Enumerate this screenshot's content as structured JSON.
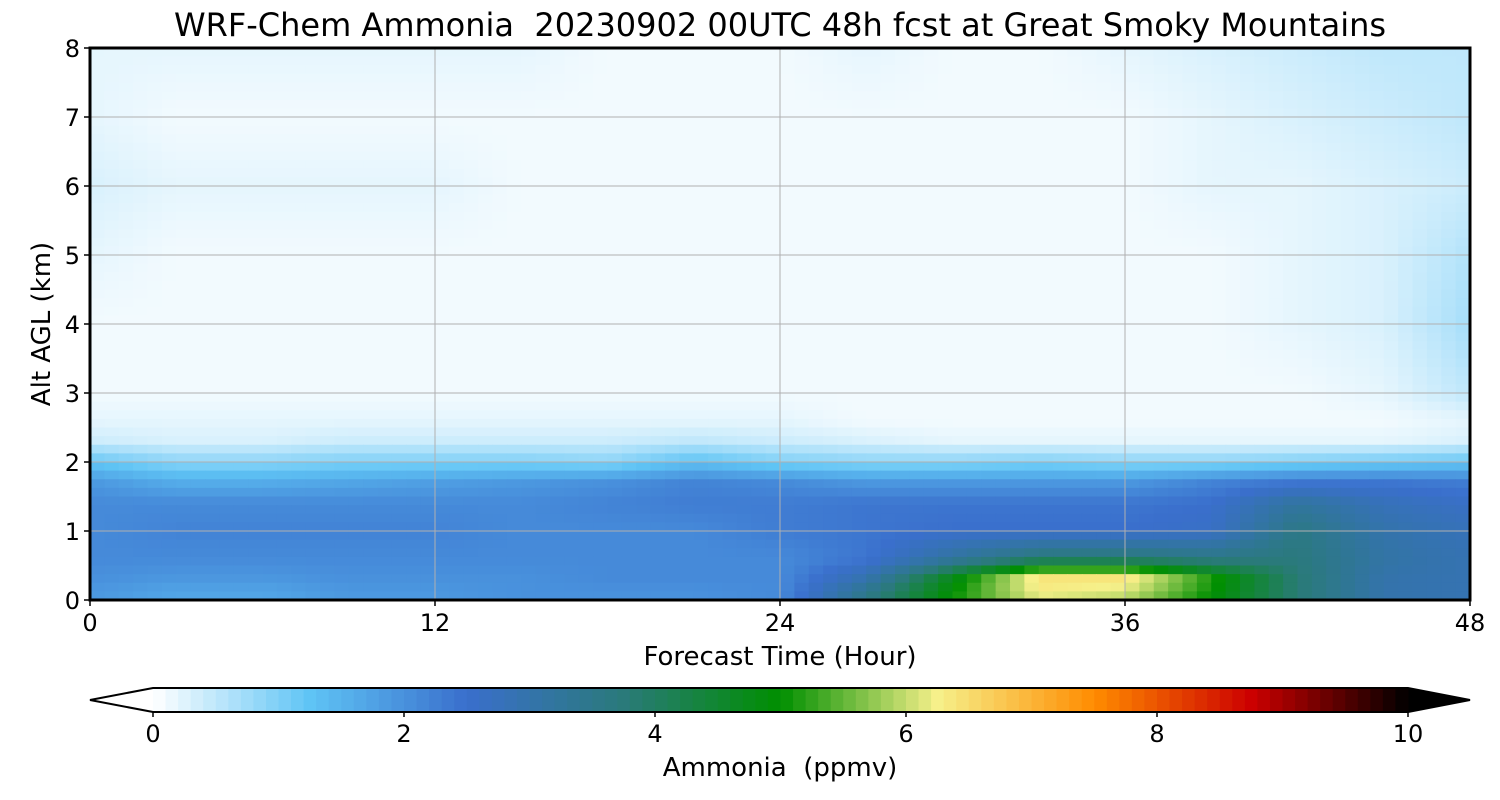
{
  "chart_data": {
    "type": "heatmap",
    "title": "WRF-Chem Ammonia  20230902 00UTC 48h fcst at Great Smoky Mountains",
    "xlabel": "Forecast Time (Hour)",
    "ylabel": "Alt AGL (km)",
    "xlim": [
      0,
      48
    ],
    "ylim": [
      0,
      8
    ],
    "x_ticks": [
      "0",
      "12",
      "24",
      "36",
      "48"
    ],
    "y_ticks": [
      "0",
      "1",
      "2",
      "3",
      "4",
      "5",
      "6",
      "7",
      "8"
    ],
    "grid": true,
    "colorbar": {
      "label": "Ammonia  (ppmv)",
      "range": [
        0,
        10
      ],
      "ticks": [
        "0",
        "2",
        "4",
        "6",
        "8",
        "10"
      ],
      "extend": "both",
      "colors": [
        "#ffffff",
        "#5fc4f5",
        "#3a6fcc",
        "#2a7a7a",
        "#008f00",
        "#f6f08a",
        "#ff8c00",
        "#cc0000",
        "#000000"
      ]
    },
    "x": [
      0,
      3,
      6,
      9,
      12,
      15,
      18,
      21,
      24,
      27,
      30,
      33,
      36,
      39,
      42,
      45,
      48
    ],
    "y": [
      0.1,
      0.3,
      0.6,
      1.0,
      1.4,
      1.7,
      2.0,
      2.3,
      2.6,
      3.0,
      4.0,
      5.0,
      6.0,
      7.0,
      8.0
    ],
    "values": [
      [
        1.9,
        1.7,
        1.7,
        1.9,
        1.9,
        2.0,
        2.0,
        2.0,
        2.1,
        3.5,
        5.0,
        6.2,
        6.0,
        5.0,
        3.8,
        3.0,
        2.9
      ],
      [
        2.0,
        1.9,
        1.9,
        2.0,
        2.0,
        2.0,
        2.1,
        2.1,
        2.1,
        3.0,
        4.8,
        6.5,
        6.5,
        5.2,
        3.8,
        3.0,
        2.9
      ],
      [
        2.1,
        2.1,
        2.1,
        2.1,
        2.1,
        2.1,
        2.1,
        2.1,
        2.1,
        2.4,
        3.2,
        3.8,
        3.8,
        3.6,
        3.7,
        3.1,
        2.9
      ],
      [
        2.1,
        2.2,
        2.2,
        2.2,
        2.2,
        2.1,
        2.1,
        2.1,
        2.3,
        2.4,
        2.5,
        2.5,
        2.5,
        2.6,
        3.6,
        3.0,
        2.8
      ],
      [
        2.1,
        2.1,
        2.1,
        2.1,
        2.1,
        2.1,
        2.2,
        2.3,
        2.3,
        2.4,
        2.4,
        2.4,
        2.4,
        2.5,
        3.2,
        2.8,
        2.6
      ],
      [
        1.9,
        1.6,
        1.6,
        1.7,
        1.8,
        1.9,
        2.0,
        2.2,
        2.1,
        1.9,
        1.9,
        1.9,
        1.9,
        2.2,
        2.4,
        2.4,
        2.3
      ],
      [
        1.2,
        0.9,
        0.9,
        1.0,
        1.0,
        1.0,
        0.9,
        1.3,
        1.0,
        0.9,
        0.9,
        1.0,
        0.9,
        0.9,
        1.0,
        1.1,
        1.2
      ],
      [
        0.4,
        0.3,
        0.3,
        0.4,
        0.4,
        0.4,
        0.4,
        0.5,
        0.4,
        0.3,
        0.2,
        0.2,
        0.2,
        0.2,
        0.2,
        0.2,
        0.3
      ],
      [
        0.2,
        0.2,
        0.2,
        0.2,
        0.2,
        0.2,
        0.2,
        0.2,
        0.2,
        0.1,
        0.1,
        0.1,
        0.1,
        0.1,
        0.1,
        0.1,
        0.2
      ],
      [
        0.1,
        0.1,
        0.1,
        0.1,
        0.1,
        0.1,
        0.1,
        0.1,
        0.1,
        0.1,
        0.1,
        0.1,
        0.1,
        0.1,
        0.1,
        0.2,
        0.5
      ],
      [
        0.1,
        0.1,
        0.1,
        0.1,
        0.1,
        0.1,
        0.1,
        0.1,
        0.1,
        0.1,
        0.1,
        0.1,
        0.1,
        0.1,
        0.2,
        0.3,
        0.7
      ],
      [
        0.2,
        0.1,
        0.1,
        0.1,
        0.1,
        0.1,
        0.1,
        0.1,
        0.1,
        0.1,
        0.1,
        0.1,
        0.1,
        0.1,
        0.2,
        0.3,
        0.6
      ],
      [
        0.3,
        0.2,
        0.2,
        0.2,
        0.2,
        0.1,
        0.1,
        0.1,
        0.1,
        0.1,
        0.1,
        0.1,
        0.1,
        0.2,
        0.2,
        0.3,
        0.4
      ],
      [
        0.2,
        0.1,
        0.1,
        0.1,
        0.1,
        0.1,
        0.1,
        0.1,
        0.1,
        0.1,
        0.1,
        0.1,
        0.1,
        0.2,
        0.3,
        0.4,
        0.5
      ],
      [
        0.2,
        0.2,
        0.2,
        0.2,
        0.2,
        0.2,
        0.1,
        0.1,
        0.1,
        0.2,
        0.1,
        0.1,
        0.2,
        0.3,
        0.4,
        0.5,
        0.5
      ]
    ]
  }
}
